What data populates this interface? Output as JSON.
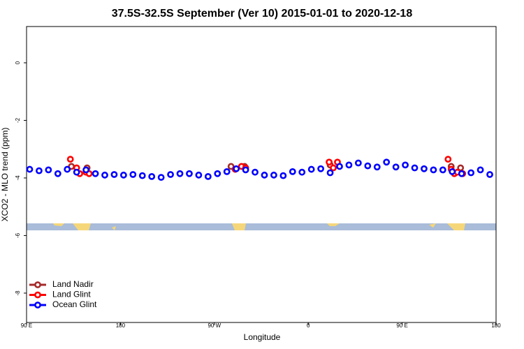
{
  "chart_data": {
    "type": "scatter",
    "title": "37.5S-32.5S September (Ver 10)   2015-01-01 to 2020-12-18",
    "x_label": "Longitude",
    "y_label": "XCO2 - MLO trend (ppm)",
    "xlim": [
      90,
      540
    ],
    "ylim": [
      -9.02,
      1.26
    ],
    "xticks": [
      {
        "value": 90,
        "label": "90 E"
      },
      180,
      {
        "value": 270,
        "label": "90 W"
      },
      {
        "value": 360,
        "label": "0"
      },
      {
        "value": 450,
        "label": "90 E"
      },
      {
        "value": 540,
        "label": "180"
      }
    ],
    "yticks": [
      0,
      -2,
      -4,
      -6,
      -8
    ],
    "legend": "bottom-left",
    "series": [
      {
        "name": "Land Nadir",
        "color": "#a52a2a",
        "x": [
          133,
          148,
          286,
          299,
          381,
          497,
          506
        ],
        "values": [
          -3.6,
          -3.65,
          -3.6,
          -3.6,
          -3.55,
          -3.6,
          -3.65
        ]
      },
      {
        "name": "Land Glint",
        "color": "#ff0000",
        "x": [
          132,
          138,
          141,
          147,
          150,
          290,
          296,
          300,
          380,
          384,
          388,
          494,
          497,
          500,
          503,
          508
        ],
        "values": [
          -3.35,
          -3.65,
          -3.85,
          -3.8,
          -3.85,
          -3.7,
          -3.6,
          -3.65,
          -3.45,
          -3.65,
          -3.45,
          -3.35,
          -3.7,
          -3.85,
          -3.8,
          -3.85
        ]
      },
      {
        "name": "Ocean Glint",
        "color": "#0000ff",
        "x": [
          93,
          102,
          111,
          120,
          129,
          138,
          147,
          156,
          165,
          174,
          183,
          192,
          201,
          210,
          219,
          228,
          237,
          246,
          255,
          264,
          273,
          282,
          291,
          300,
          309,
          318,
          327,
          336,
          345,
          354,
          363,
          372,
          381,
          390,
          399,
          408,
          417,
          426,
          435,
          444,
          453,
          462,
          471,
          480,
          489,
          498,
          507,
          516,
          525,
          534
        ],
        "values": [
          -3.7,
          -3.75,
          -3.72,
          -3.85,
          -3.7,
          -3.8,
          -3.72,
          -3.85,
          -3.9,
          -3.88,
          -3.9,
          -3.88,
          -3.92,
          -3.95,
          -3.98,
          -3.88,
          -3.85,
          -3.85,
          -3.9,
          -3.95,
          -3.85,
          -3.78,
          -3.68,
          -3.72,
          -3.8,
          -3.9,
          -3.9,
          -3.92,
          -3.78,
          -3.8,
          -3.7,
          -3.68,
          -3.82,
          -3.6,
          -3.55,
          -3.48,
          -3.58,
          -3.62,
          -3.45,
          -3.62,
          -3.55,
          -3.65,
          -3.68,
          -3.72,
          -3.72,
          -3.78,
          -3.85,
          -3.82,
          -3.72,
          -3.88
        ]
      }
    ]
  }
}
